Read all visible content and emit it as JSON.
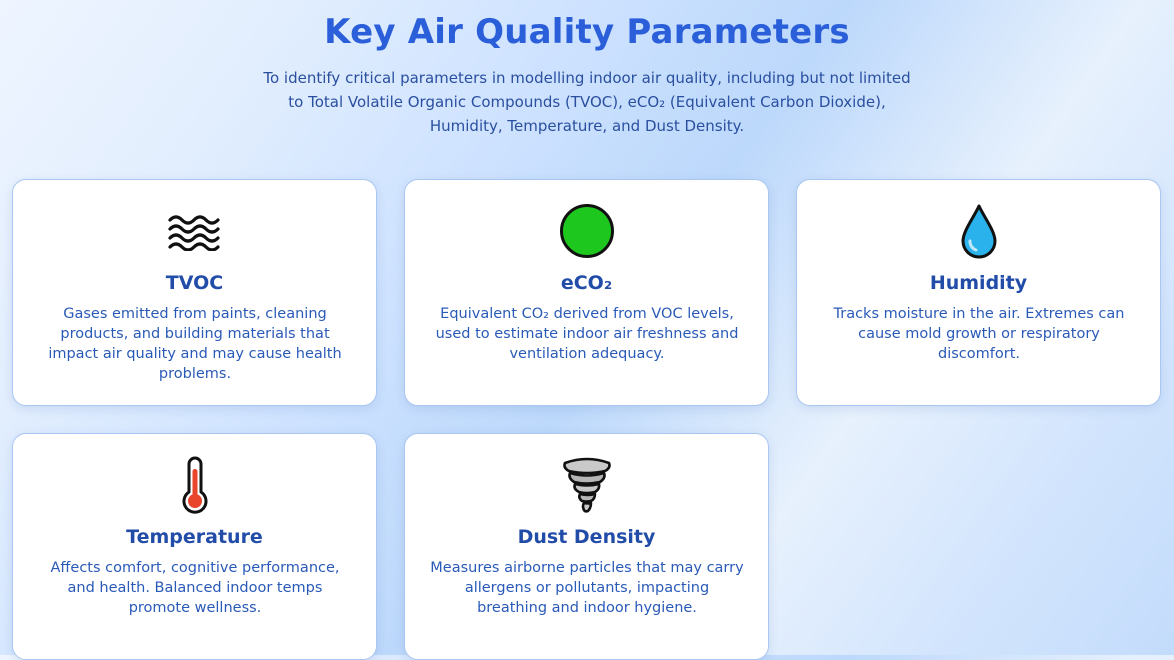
{
  "header": {
    "title": "Key Air Quality Parameters",
    "intro": "To identify critical parameters in modelling indoor air quality, including but not limited to Total Volatile Organic Compounds (TVOC), eCO₂ (Equivalent Carbon Dioxide), Humidity, Temperature, and Dust Density."
  },
  "cards": [
    {
      "icon": "waves-icon",
      "title": "TVOC",
      "description": "Gases emitted from paints, cleaning products, and building materials that impact air quality and may cause health problems."
    },
    {
      "icon": "green-circle-icon",
      "title": "eCO₂",
      "description": "Equivalent CO₂ derived from VOC levels, used to estimate indoor air freshness and ventilation adequacy."
    },
    {
      "icon": "droplet-icon",
      "title": "Humidity",
      "description": "Tracks moisture in the air. Extremes can cause mold growth or respiratory discomfort."
    },
    {
      "icon": "thermometer-icon",
      "title": "Temperature",
      "description": "Affects comfort, cognitive performance, and health. Balanced indoor temps promote wellness."
    },
    {
      "icon": "tornado-icon",
      "title": "Dust Density",
      "description": "Measures airborne particles that may carry allergens or pollutants, impacting breathing and indoor hygiene."
    }
  ],
  "colors": {
    "title": "#2b5fd9",
    "card_title": "#214ca8",
    "card_text": "#2a5ab8",
    "card_border": "#a9c7f0",
    "eco2_green": "#1ec71e",
    "droplet_blue": "#29b2ec",
    "thermometer_red": "#e8452c"
  }
}
